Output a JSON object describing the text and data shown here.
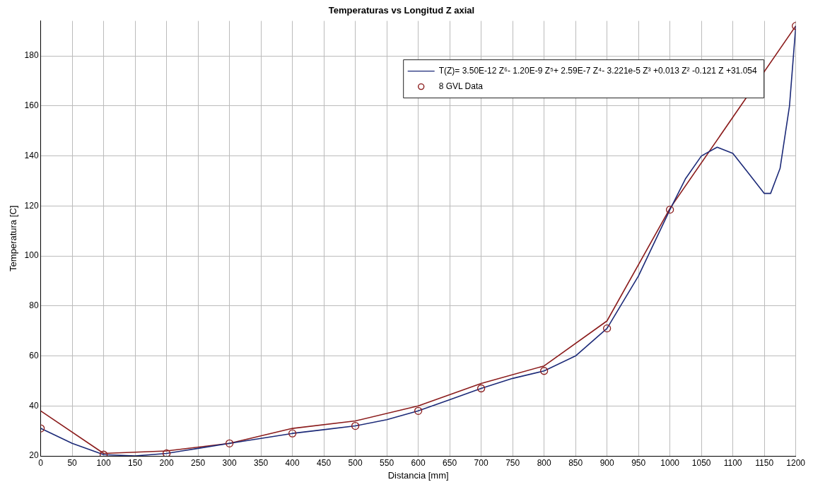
{
  "chart_data": {
    "type": "line",
    "title": "Temperaturas vs Longitud Z axial",
    "xlabel": "Distancia [mm]",
    "ylabel": "Temperatura [C]",
    "xlim": [
      0,
      1200
    ],
    "xticks": [
      0,
      50,
      100,
      150,
      200,
      250,
      300,
      350,
      400,
      450,
      500,
      550,
      600,
      650,
      700,
      750,
      800,
      850,
      900,
      950,
      1000,
      1050,
      1100,
      1150,
      1200
    ],
    "ylim": [
      20,
      194
    ],
    "yticks": [
      20,
      40,
      60,
      80,
      100,
      120,
      140,
      160,
      180
    ],
    "grid": true,
    "legend": "top right",
    "line_style": "solid",
    "series": [
      {
        "name": "T(Z)= 3.50E-12 Z⁶- 1.20E-9 Z⁵+ 2.59E-7 Z⁴- 3.221e-5 Z³ +0.013 Z² -0.121 Z +31.054",
        "color": "#1c2a78",
        "marker": "none",
        "x": [
          0,
          50,
          100,
          150,
          200,
          250,
          300,
          350,
          400,
          450,
          500,
          550,
          600,
          650,
          700,
          750,
          800,
          850,
          900,
          950,
          1000,
          1025,
          1050,
          1075,
          1100,
          1125,
          1150,
          1160,
          1175,
          1190,
          1200
        ],
        "values": [
          31,
          25,
          20.5,
          20,
          21,
          23,
          25,
          27,
          29,
          30.5,
          32,
          34.5,
          38,
          42.5,
          47,
          51,
          54,
          60,
          71,
          92,
          118.5,
          131,
          140,
          143.5,
          141,
          133,
          125,
          125,
          135,
          160,
          192
        ]
      },
      {
        "color": "#8b1c1c",
        "marker": "none",
        "x": [
          0,
          100,
          200,
          300,
          400,
          500,
          600,
          700,
          800,
          900,
          1000,
          1200
        ],
        "values": [
          38,
          21,
          22,
          25,
          31,
          34,
          40,
          49,
          56,
          74,
          119,
          192
        ]
      },
      {
        "type": "scatter",
        "name": "8 GVL Data",
        "color": "#8b1c1c",
        "marker": "circle",
        "x": [
          0,
          100,
          200,
          300,
          400,
          500,
          600,
          700,
          800,
          900,
          1000,
          1200
        ],
        "values": [
          31,
          20.5,
          21,
          25,
          29,
          32,
          38,
          47,
          54,
          71,
          118.5,
          192
        ]
      }
    ]
  }
}
